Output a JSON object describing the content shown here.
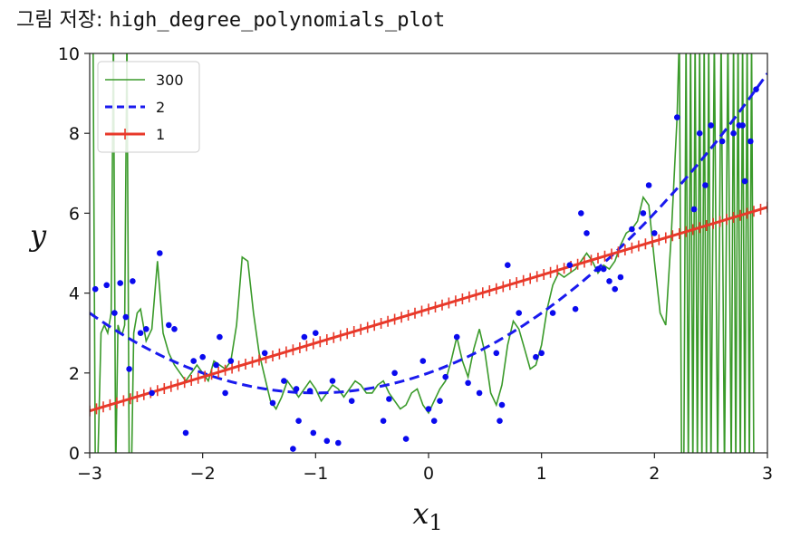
{
  "page": {
    "caption_prefix": "그림 저장:",
    "caption_name": "high_degree_polynomials_plot"
  },
  "colors": {
    "deg300": "#3a9a2a",
    "deg2": "#1a1aee",
    "deg1": "#e8392a",
    "points": "#0a0aee"
  },
  "chart_data": {
    "type": "line",
    "xlabel": "x₁",
    "ylabel": "y",
    "xlim": [
      -3,
      3
    ],
    "ylim": [
      0,
      10
    ],
    "xticks": [
      -3,
      -2,
      -1,
      0,
      1,
      2,
      3
    ],
    "yticks": [
      0,
      2,
      4,
      6,
      8,
      10
    ],
    "xtick_labels": [
      "−3",
      "−2",
      "−1",
      "0",
      "1",
      "2",
      "3"
    ],
    "ytick_labels": [
      "0",
      "2",
      "4",
      "6",
      "8",
      "10"
    ],
    "grid": false,
    "legend": {
      "placement": "upper-left",
      "entries": [
        "300",
        "2",
        "1"
      ]
    },
    "scatter": {
      "x": [
        -2.95,
        -2.85,
        -2.78,
        -2.73,
        -2.68,
        -2.65,
        -2.62,
        -2.55,
        -2.5,
        -2.45,
        -2.38,
        -2.3,
        -2.25,
        -2.15,
        -2.08,
        -2.0,
        -1.88,
        -1.85,
        -1.8,
        -1.75,
        -1.45,
        -1.38,
        -1.28,
        -1.2,
        -1.17,
        -1.15,
        -1.1,
        -1.05,
        -1.02,
        -1.0,
        -0.9,
        -0.85,
        -0.8,
        -0.68,
        -0.4,
        -0.35,
        -0.3,
        -0.2,
        -0.05,
        0.0,
        0.05,
        0.1,
        0.15,
        0.25,
        0.35,
        0.45,
        0.6,
        0.63,
        0.65,
        0.7,
        0.8,
        0.95,
        1.0,
        1.1,
        1.25,
        1.3,
        1.35,
        1.4,
        1.5,
        1.55,
        1.6,
        1.65,
        1.7,
        1.8,
        1.9,
        1.95,
        2.0,
        2.2,
        2.35,
        2.4,
        2.45,
        2.5,
        2.6,
        2.7,
        2.75,
        2.78,
        2.8,
        2.85,
        2.9
      ],
      "y": [
        4.1,
        4.2,
        3.5,
        4.25,
        3.4,
        2.1,
        4.3,
        3.0,
        3.1,
        1.5,
        5.0,
        3.2,
        3.1,
        0.5,
        2.3,
        2.4,
        2.2,
        2.9,
        1.5,
        2.3,
        2.5,
        1.25,
        1.8,
        0.1,
        1.6,
        0.8,
        2.9,
        1.55,
        0.5,
        3.0,
        0.3,
        1.8,
        0.25,
        1.3,
        0.8,
        1.35,
        2.0,
        0.35,
        2.3,
        1.1,
        0.8,
        1.3,
        1.9,
        2.9,
        1.75,
        1.5,
        2.5,
        0.8,
        1.2,
        4.7,
        3.5,
        2.4,
        2.5,
        3.5,
        4.7,
        3.6,
        6.0,
        5.5,
        4.6,
        4.6,
        4.3,
        4.1,
        4.4,
        5.6,
        6.0,
        6.7,
        5.5,
        8.4,
        6.1,
        8.0,
        6.7,
        8.2,
        7.8,
        8.0,
        8.2,
        8.2,
        6.8,
        7.8,
        9.1
      ]
    },
    "series": [
      {
        "name": "300",
        "x": [
          -2.97,
          -2.95,
          -2.93,
          -2.9,
          -2.87,
          -2.84,
          -2.81,
          -2.79,
          -2.77,
          -2.75,
          -2.73,
          -2.71,
          -2.69,
          -2.67,
          -2.65,
          -2.63,
          -2.61,
          -2.58,
          -2.55,
          -2.5,
          -2.45,
          -2.4,
          -2.35,
          -2.3,
          -2.25,
          -2.2,
          -2.15,
          -2.1,
          -2.05,
          -2.0,
          -1.95,
          -1.9,
          -1.85,
          -1.8,
          -1.75,
          -1.7,
          -1.65,
          -1.6,
          -1.55,
          -1.5,
          -1.45,
          -1.4,
          -1.35,
          -1.3,
          -1.25,
          -1.2,
          -1.15,
          -1.1,
          -1.05,
          -1.0,
          -0.95,
          -0.9,
          -0.85,
          -0.8,
          -0.75,
          -0.7,
          -0.65,
          -0.6,
          -0.55,
          -0.5,
          -0.45,
          -0.4,
          -0.35,
          -0.3,
          -0.25,
          -0.2,
          -0.15,
          -0.1,
          -0.05,
          0.0,
          0.05,
          0.1,
          0.15,
          0.2,
          0.25,
          0.3,
          0.35,
          0.4,
          0.45,
          0.5,
          0.55,
          0.6,
          0.65,
          0.7,
          0.75,
          0.8,
          0.85,
          0.9,
          0.95,
          1.0,
          1.05,
          1.1,
          1.15,
          1.2,
          1.25,
          1.3,
          1.35,
          1.4,
          1.45,
          1.5,
          1.55,
          1.6,
          1.65,
          1.7,
          1.75,
          1.8,
          1.85,
          1.9,
          1.95,
          2.0,
          2.05,
          2.1,
          2.15,
          2.2,
          2.22,
          2.24,
          2.26,
          2.28,
          2.3,
          2.32,
          2.34,
          2.36,
          2.38,
          2.4,
          2.42,
          2.44,
          2.46,
          2.48,
          2.5,
          2.53,
          2.56,
          2.59,
          2.62,
          2.65,
          2.68,
          2.7,
          2.72,
          2.74,
          2.76,
          2.78,
          2.8,
          2.82,
          2.84,
          2.86,
          2.88
        ],
        "y": [
          10.5,
          -0.5,
          -0.5,
          3.0,
          3.2,
          3.0,
          3.5,
          10.5,
          -0.5,
          3.2,
          3.0,
          3.0,
          3.2,
          10.5,
          -0.5,
          -0.5,
          3.0,
          3.5,
          3.6,
          2.8,
          3.1,
          4.8,
          3.0,
          2.5,
          2.2,
          2.0,
          1.8,
          2.0,
          2.2,
          2.0,
          1.8,
          2.3,
          2.2,
          2.1,
          2.3,
          3.2,
          4.9,
          4.8,
          3.5,
          2.5,
          1.9,
          1.3,
          1.1,
          1.4,
          1.8,
          1.6,
          1.4,
          1.6,
          1.8,
          1.6,
          1.3,
          1.5,
          1.7,
          1.6,
          1.4,
          1.6,
          1.8,
          1.7,
          1.5,
          1.5,
          1.7,
          1.8,
          1.5,
          1.3,
          1.1,
          1.2,
          1.5,
          1.6,
          1.2,
          1.0,
          1.3,
          1.6,
          1.8,
          2.3,
          2.9,
          2.3,
          1.9,
          2.6,
          3.1,
          2.5,
          1.5,
          1.2,
          1.7,
          2.7,
          3.3,
          3.1,
          2.6,
          2.1,
          2.2,
          2.7,
          3.6,
          4.2,
          4.5,
          4.4,
          4.5,
          4.6,
          4.8,
          5.0,
          4.8,
          4.5,
          4.7,
          4.6,
          4.8,
          5.2,
          5.5,
          5.6,
          5.8,
          6.4,
          6.2,
          4.8,
          3.5,
          3.2,
          5.5,
          8.4,
          10.5,
          -0.5,
          -0.5,
          10.5,
          -0.5,
          10.5,
          -0.5,
          10.5,
          -0.5,
          10.5,
          -0.5,
          10.5,
          -0.5,
          10.5,
          -0.5,
          10.5,
          -0.5,
          10.5,
          -0.5,
          10.5,
          -0.5,
          10.5,
          -0.5,
          10.5,
          -0.5,
          10.5,
          -0.5,
          10.5,
          -0.5,
          10.5,
          -0.5
        ]
      },
      {
        "name": "2",
        "a": 0.5,
        "b": 1.0,
        "c": 2.0
      },
      {
        "name": "1",
        "a": 0.0,
        "b": 0.85,
        "c": 3.6
      }
    ]
  }
}
